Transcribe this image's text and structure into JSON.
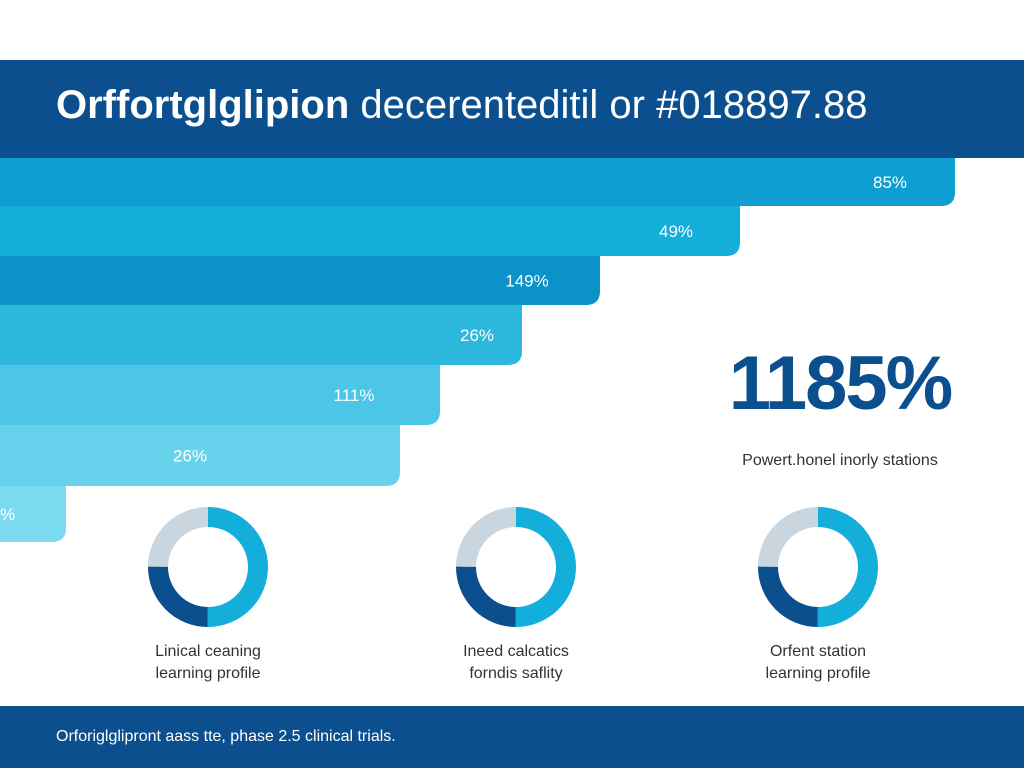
{
  "header": {
    "title_bold": "Orffortglglipion",
    "title_rest": "decerenteditil or #018897.88"
  },
  "chart_data": {
    "type": "bar",
    "orientation": "horizontal-funnel",
    "labels": [
      "85%",
      "49%",
      "149%",
      "26%",
      "111%",
      "26%",
      "%"
    ],
    "colors": [
      "#0f9ed1",
      "#14aedb",
      "#0b92c9",
      "#2cb8dd",
      "#4cc6e6",
      "#66d2ec",
      "#7cdaf0"
    ]
  },
  "highlight": {
    "value": "1185%",
    "caption": "Powert.honel inorly stations"
  },
  "donuts": [
    {
      "caption_line1": "Linical ceaning",
      "caption_line2": "learning profile",
      "segments": [
        0.5,
        0.25,
        0.25
      ]
    },
    {
      "caption_line1": "Ineed calcatics",
      "caption_line2": "forndis saflity",
      "segments": [
        0.5,
        0.25,
        0.25
      ]
    },
    {
      "caption_line1": "Orfent station",
      "caption_line2": "learning profile",
      "segments": [
        0.5,
        0.25,
        0.25
      ]
    }
  ],
  "donut_colors": {
    "primary": "#14aedb",
    "secondary": "#0b4f8e",
    "track": "#c9d6e0"
  },
  "footer": {
    "text": "Orforiglglipront aass tte, phase 2.5 clinical trials."
  }
}
